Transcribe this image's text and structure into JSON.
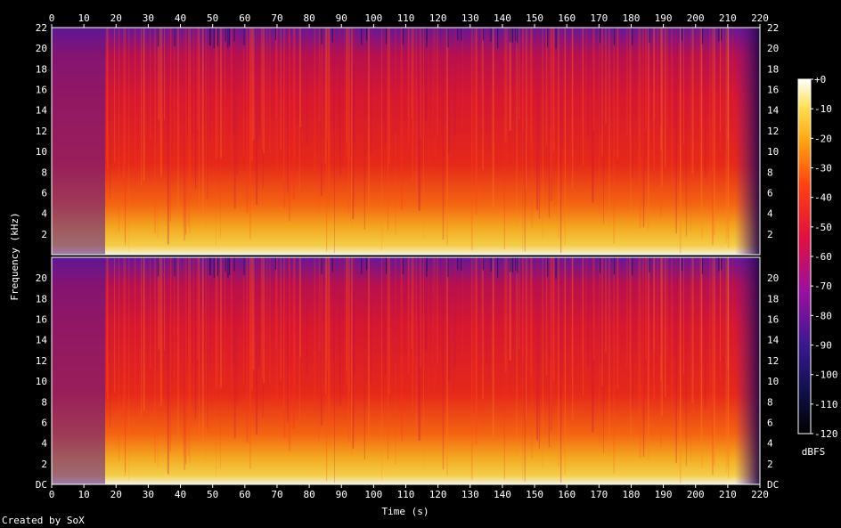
{
  "chart_data": {
    "type": "heatmap",
    "title": "",
    "xlabel": "Time (s)",
    "ylabel": "Frequency (kHz)",
    "xlim": [
      0,
      220
    ],
    "x_ticks": [
      "0",
      "10",
      "20",
      "30",
      "40",
      "50",
      "60",
      "70",
      "80",
      "90",
      "100",
      "110",
      "120",
      "130",
      "140",
      "150",
      "160",
      "170",
      "180",
      "190",
      "200",
      "210",
      "220"
    ],
    "ylim": [
      0,
      22
    ],
    "channel_top_y_ticks": [
      "2",
      "4",
      "6",
      "8",
      "10",
      "12",
      "14",
      "16",
      "18",
      "20",
      "22"
    ],
    "channel_bottom_y_ticks": [
      "DC",
      "2",
      "4",
      "6",
      "8",
      "10",
      "12",
      "14",
      "16",
      "18",
      "20"
    ],
    "colorbar": {
      "label": "dBFS",
      "range": [
        -120,
        0
      ],
      "ticks": [
        "+0",
        "-10",
        "-20",
        "-30",
        "-40",
        "-50",
        "-60",
        "-70",
        "-80",
        "-90",
        "-100",
        "-110",
        "-120"
      ]
    },
    "channels": 2,
    "credit": "Created by SoX"
  }
}
